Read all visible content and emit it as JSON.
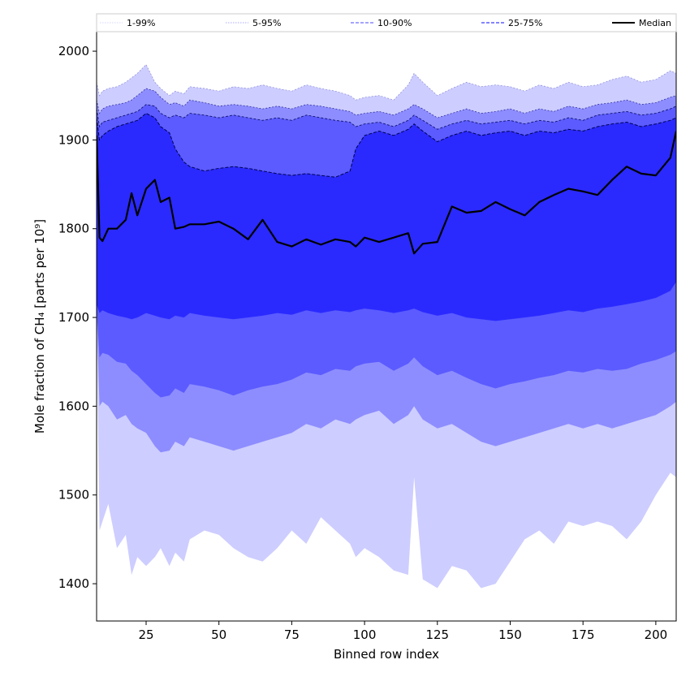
{
  "chart_data": {
    "type": "area",
    "title": "",
    "xlabel": "Binned row index",
    "ylabel": "Mole fraction of CH₄ [parts per 10⁹]",
    "xlim": [
      8,
      207
    ],
    "ylim": [
      1358,
      2022
    ],
    "xticks": [
      25,
      50,
      75,
      100,
      125,
      150,
      175,
      200
    ],
    "yticks": [
      1400,
      1500,
      1600,
      1700,
      1800,
      1900,
      2000
    ],
    "legend_position": "top (full width, above plot)",
    "grid": false,
    "x": [
      8,
      9,
      10,
      12,
      15,
      18,
      20,
      22,
      25,
      28,
      30,
      33,
      35,
      38,
      40,
      45,
      50,
      55,
      60,
      65,
      70,
      75,
      80,
      85,
      90,
      95,
      97,
      100,
      105,
      110,
      115,
      117,
      120,
      125,
      130,
      135,
      140,
      145,
      150,
      155,
      160,
      165,
      170,
      175,
      180,
      185,
      190,
      195,
      200,
      205,
      207
    ],
    "bands": [
      {
        "name": "1-99%",
        "color": "#cdcdff",
        "lower": [
          1700,
          1460,
          1470,
          1490,
          1440,
          1455,
          1410,
          1430,
          1420,
          1430,
          1440,
          1420,
          1435,
          1425,
          1450,
          1460,
          1455,
          1440,
          1430,
          1425,
          1440,
          1460,
          1445,
          1475,
          1460,
          1445,
          1430,
          1440,
          1430,
          1415,
          1410,
          1520,
          1405,
          1395,
          1420,
          1415,
          1395,
          1400,
          1425,
          1450,
          1460,
          1445,
          1470,
          1465,
          1470,
          1465,
          1450,
          1470,
          1500,
          1525,
          1520
        ],
        "upper": [
          1965,
          1950,
          1955,
          1958,
          1960,
          1965,
          1970,
          1975,
          1985,
          1965,
          1958,
          1950,
          1955,
          1952,
          1960,
          1958,
          1955,
          1960,
          1958,
          1962,
          1958,
          1955,
          1962,
          1958,
          1955,
          1950,
          1945,
          1948,
          1950,
          1945,
          1962,
          1975,
          1965,
          1950,
          1958,
          1965,
          1960,
          1962,
          1960,
          1955,
          1962,
          1958,
          1965,
          1960,
          1962,
          1968,
          1972,
          1965,
          1968,
          1978,
          1975
        ]
      },
      {
        "name": "5-95%",
        "color": "#8d8dff",
        "lower": [
          1710,
          1600,
          1605,
          1600,
          1585,
          1590,
          1580,
          1575,
          1570,
          1555,
          1548,
          1550,
          1560,
          1555,
          1565,
          1560,
          1555,
          1550,
          1555,
          1560,
          1565,
          1570,
          1580,
          1575,
          1585,
          1580,
          1585,
          1590,
          1595,
          1580,
          1590,
          1600,
          1585,
          1575,
          1580,
          1570,
          1560,
          1555,
          1560,
          1565,
          1570,
          1575,
          1580,
          1575,
          1580,
          1575,
          1580,
          1585,
          1590,
          1600,
          1605
        ],
        "upper": [
          1945,
          1930,
          1935,
          1938,
          1940,
          1942,
          1945,
          1950,
          1958,
          1955,
          1948,
          1940,
          1942,
          1938,
          1945,
          1942,
          1938,
          1940,
          1938,
          1935,
          1938,
          1935,
          1940,
          1938,
          1935,
          1932,
          1928,
          1930,
          1932,
          1928,
          1935,
          1940,
          1935,
          1925,
          1930,
          1935,
          1930,
          1932,
          1935,
          1930,
          1935,
          1932,
          1938,
          1935,
          1940,
          1942,
          1945,
          1940,
          1942,
          1948,
          1950
        ]
      },
      {
        "name": "10-90%",
        "color": "#5b5bff",
        "lower": [
          1712,
          1655,
          1660,
          1658,
          1650,
          1648,
          1640,
          1635,
          1625,
          1615,
          1610,
          1612,
          1620,
          1615,
          1625,
          1622,
          1618,
          1612,
          1618,
          1622,
          1625,
          1630,
          1638,
          1635,
          1642,
          1640,
          1645,
          1648,
          1650,
          1640,
          1648,
          1655,
          1645,
          1635,
          1640,
          1632,
          1625,
          1620,
          1625,
          1628,
          1632,
          1635,
          1640,
          1638,
          1642,
          1640,
          1642,
          1648,
          1652,
          1658,
          1662
        ],
        "upper": [
          1935,
          1915,
          1920,
          1922,
          1925,
          1928,
          1930,
          1932,
          1940,
          1938,
          1930,
          1925,
          1928,
          1925,
          1930,
          1928,
          1925,
          1928,
          1925,
          1922,
          1925,
          1922,
          1928,
          1925,
          1922,
          1920,
          1915,
          1918,
          1920,
          1915,
          1922,
          1928,
          1922,
          1912,
          1918,
          1922,
          1918,
          1920,
          1922,
          1918,
          1922,
          1920,
          1925,
          1922,
          1928,
          1930,
          1932,
          1928,
          1930,
          1935,
          1938
        ]
      },
      {
        "name": "25-75%",
        "color": "#2a2aff",
        "lower": [
          1715,
          1705,
          1708,
          1705,
          1702,
          1700,
          1698,
          1700,
          1705,
          1702,
          1700,
          1698,
          1702,
          1700,
          1705,
          1702,
          1700,
          1698,
          1700,
          1702,
          1705,
          1703,
          1708,
          1705,
          1708,
          1706,
          1708,
          1710,
          1708,
          1705,
          1708,
          1710,
          1706,
          1702,
          1705,
          1700,
          1698,
          1696,
          1698,
          1700,
          1702,
          1705,
          1708,
          1706,
          1710,
          1712,
          1715,
          1718,
          1722,
          1730,
          1740
        ],
        "upper": [
          1925,
          1900,
          1905,
          1910,
          1915,
          1918,
          1920,
          1922,
          1930,
          1925,
          1915,
          1908,
          1890,
          1875,
          1870,
          1865,
          1868,
          1870,
          1868,
          1865,
          1862,
          1860,
          1862,
          1860,
          1858,
          1865,
          1890,
          1905,
          1910,
          1905,
          1912,
          1918,
          1910,
          1898,
          1905,
          1910,
          1905,
          1908,
          1910,
          1905,
          1910,
          1908,
          1912,
          1910,
          1915,
          1918,
          1920,
          1915,
          1918,
          1922,
          1925
        ]
      }
    ],
    "series": [
      {
        "name": "Median",
        "color": "#000000",
        "values": [
          1905,
          1790,
          1786,
          1800,
          1800,
          1810,
          1840,
          1815,
          1845,
          1855,
          1830,
          1835,
          1800,
          1802,
          1805,
          1805,
          1808,
          1800,
          1788,
          1810,
          1785,
          1780,
          1788,
          1782,
          1788,
          1785,
          1780,
          1790,
          1785,
          1790,
          1795,
          1772,
          1783,
          1785,
          1825,
          1818,
          1820,
          1830,
          1822,
          1815,
          1830,
          1838,
          1845,
          1842,
          1838,
          1855,
          1870,
          1862,
          1860,
          1880,
          1910
        ]
      }
    ],
    "legend": [
      {
        "label": "1-99%",
        "style": "thin",
        "color": "#c6c6ff"
      },
      {
        "label": "5-95%",
        "style": "thin",
        "color": "#8d8dff"
      },
      {
        "label": "10-90%",
        "style": "dashed",
        "color": "#6d6dff"
      },
      {
        "label": "25-75%",
        "style": "dashed",
        "color": "#3a3aff"
      },
      {
        "label": "Median",
        "style": "solid",
        "color": "#000000"
      }
    ]
  }
}
